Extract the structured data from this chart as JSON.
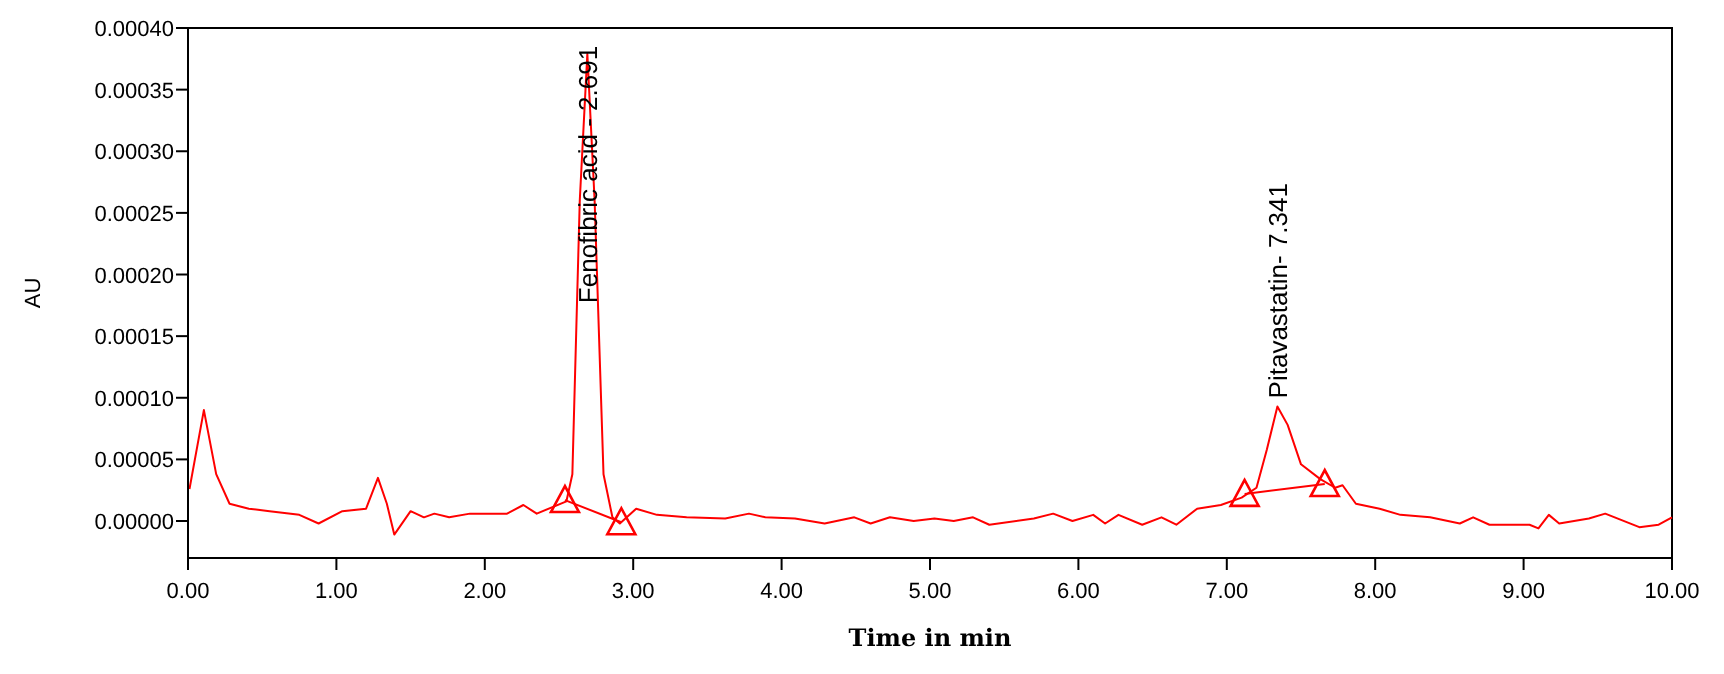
{
  "chart_data": {
    "type": "line",
    "xlabel": "Time in min",
    "ylabel": "AU",
    "xlim": [
      0,
      10
    ],
    "ylim": [
      -3e-05,
      0.0004
    ],
    "xticks": [
      {
        "value": 0,
        "label": "0.00"
      },
      {
        "value": 1,
        "label": "1.00"
      },
      {
        "value": 2,
        "label": "2.00"
      },
      {
        "value": 3,
        "label": "3.00"
      },
      {
        "value": 4,
        "label": "4.00"
      },
      {
        "value": 5,
        "label": "5.00"
      },
      {
        "value": 6,
        "label": "6.00"
      },
      {
        "value": 7,
        "label": "7.00"
      },
      {
        "value": 8,
        "label": "8.00"
      },
      {
        "value": 9,
        "label": "9.00"
      },
      {
        "value": 10,
        "label": "10.00"
      }
    ],
    "yticks": [
      {
        "value": 0,
        "label": "0.00000"
      },
      {
        "value": 5e-05,
        "label": "0.00005"
      },
      {
        "value": 0.0001,
        "label": "0.00010"
      },
      {
        "value": 0.00015,
        "label": "0.00015"
      },
      {
        "value": 0.0002,
        "label": "0.00020"
      },
      {
        "value": 0.00025,
        "label": "0.00025"
      },
      {
        "value": 0.0003,
        "label": "0.00030"
      },
      {
        "value": 0.00035,
        "label": "0.00035"
      },
      {
        "value": 0.0004,
        "label": "0.00040"
      }
    ],
    "grid": false,
    "line_style": "solid",
    "series": [
      {
        "color": "#ff0000",
        "marker": "none",
        "x": [
          0.01,
          0.107,
          0.19,
          0.28,
          0.41,
          0.55,
          0.75,
          0.88,
          1.04,
          1.2,
          1.28,
          1.34,
          1.39,
          1.5,
          1.59,
          1.66,
          1.76,
          1.9,
          2.15,
          2.26,
          2.35,
          2.55,
          2.59,
          2.64,
          2.691,
          2.74,
          2.8,
          2.86,
          2.91,
          3.02,
          3.16,
          3.36,
          3.62,
          3.78,
          3.89,
          4.09,
          4.29,
          4.49,
          4.6,
          4.73,
          4.89,
          5.03,
          5.16,
          5.29,
          5.4,
          5.7,
          5.83,
          5.96,
          6.1,
          6.18,
          6.27,
          6.43,
          6.56,
          6.66,
          6.8,
          6.96,
          7.1,
          7.2,
          7.27,
          7.341,
          7.41,
          7.5,
          7.63,
          7.73,
          7.78,
          7.87,
          8.03,
          8.17,
          8.37,
          8.57,
          8.66,
          8.77,
          9.04,
          9.1,
          9.17,
          9.24,
          9.44,
          9.55,
          9.78,
          9.91,
          10.0
        ],
        "values": [
          2.6e-05,
          9e-05,
          3.8e-05,
          1.4e-05,
          1e-05,
          8e-06,
          5e-06,
          -2e-06,
          8e-06,
          1e-05,
          3.5e-05,
          1.4e-05,
          -1.1e-05,
          8e-06,
          3e-06,
          6e-06,
          3e-06,
          6e-06,
          6e-06,
          1.3e-05,
          6e-06,
          1.6e-05,
          3.8e-05,
          0.00026,
          0.000379,
          0.00026,
          3.8e-05,
          3e-06,
          -2e-06,
          1e-05,
          5e-06,
          3e-06,
          2e-06,
          6e-06,
          3e-06,
          2e-06,
          -2e-06,
          3e-06,
          -2e-06,
          3e-06,
          0,
          2e-06,
          0,
          3e-06,
          -3e-06,
          2e-06,
          6e-06,
          0,
          5e-06,
          -2e-06,
          5e-06,
          -3e-06,
          3e-06,
          -3e-06,
          1e-05,
          1.3e-05,
          1.9e-05,
          2.7e-05,
          5.8e-05,
          9.3e-05,
          7.8e-05,
          4.6e-05,
          3.4e-05,
          2.7e-05,
          2.9e-05,
          1.4e-05,
          1e-05,
          5e-06,
          3e-06,
          -2e-06,
          3e-06,
          -3e-06,
          -3e-06,
          -6e-06,
          5e-06,
          -2e-06,
          2e-06,
          6e-06,
          -5e-06,
          -3e-06,
          3e-06
        ]
      },
      {
        "color": "#ff0000",
        "marker": "triangle",
        "x": [
          2.54,
          2.92
        ],
        "values": [
          1.7e-05,
          -1e-06
        ]
      },
      {
        "color": "#ff0000",
        "marker": "triangle",
        "x": [
          7.12,
          7.66
        ],
        "values": [
          2.2e-05,
          3e-05
        ]
      }
    ],
    "annotations": [
      {
        "text": "Fenofibric acid - 2.691",
        "x": 2.691,
        "y": 0.000379
      },
      {
        "text": "Pitavastatin- 7.341",
        "x": 7.341,
        "y": 9.3e-05
      }
    ]
  }
}
